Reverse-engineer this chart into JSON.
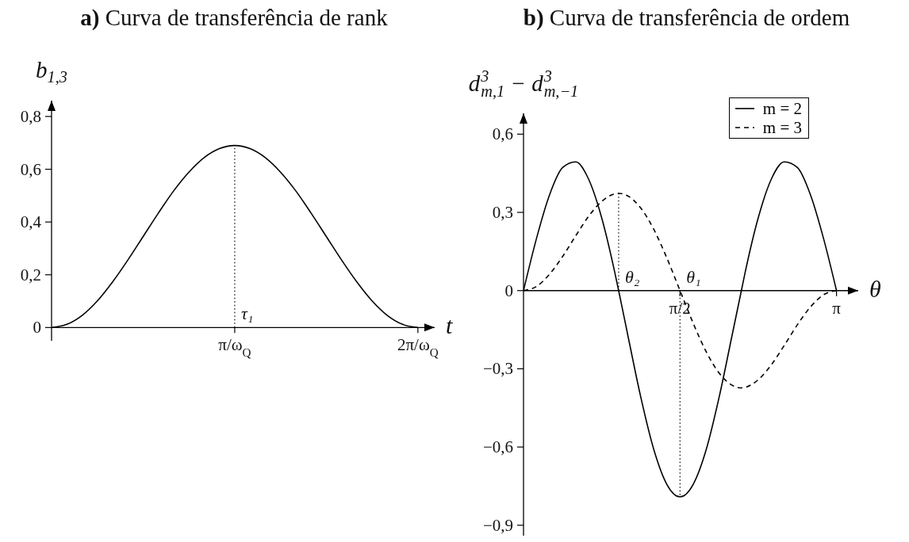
{
  "chart_data": [
    {
      "type": "line",
      "title": "a) Curva de transferência de rank",
      "xlabel": "t",
      "ylabel": "b$_{1,3}$",
      "color": "#000000",
      "categories": [
        null,
        null,
        null,
        null,
        null,
        null,
        null,
        null,
        null,
        null,
        null,
        null,
        "π/ω$_{Q}$",
        null,
        null,
        null,
        null,
        null,
        null,
        null,
        null,
        null,
        null,
        null,
        "2π/ω$_{Q}$"
      ],
      "values": [
        0,
        0.012,
        0.046,
        0.101,
        0.173,
        0.256,
        0.345,
        0.434,
        0.518,
        0.589,
        0.644,
        0.678,
        0.69,
        0.678,
        0.644,
        0.589,
        0.518,
        0.434,
        0.345,
        0.256,
        0.173,
        0.101,
        0.046,
        0.012,
        0
      ],
      "ylim": [
        -0.05,
        0.86
      ],
      "yticks": [
        {
          "value": 0,
          "label": "0"
        },
        {
          "value": 0.2,
          "label": "0,2"
        },
        {
          "value": 0.4,
          "label": "0,4"
        },
        {
          "value": 0.6,
          "label": "0,6"
        },
        {
          "value": 0.8,
          "label": "0,8"
        }
      ],
      "ref_lines": [
        {
          "axis": "x",
          "value": "π/ω$_{Q}$",
          "label": "τ₁",
          "line_style": "dotted"
        }
      ]
    },
    {
      "type": "line",
      "title": "b) Curva de transferência de ordem",
      "xlabel": "θ",
      "ylabel": "d$^{3}$$_{m,1}$ − d$^{3}$$_{m,−1}$",
      "series": [
        {
          "name": "m = 2",
          "color": "#000000",
          "line_style": "solid",
          "x": [
            0,
            0.131,
            0.262,
            0.393,
            0.524,
            0.654,
            0.785,
            0.916,
            0.955,
            1.047,
            1.178,
            1.309,
            1.44,
            1.571,
            1.702,
            1.833,
            1.963,
            2.094,
            2.187,
            2.225,
            2.356,
            2.487,
            2.618,
            2.749,
            2.88,
            3.011,
            3.142
          ],
          "values": [
            0,
            0.201,
            0.368,
            0.472,
            0.494,
            0.427,
            0.279,
            0.07,
            0,
            -0.171,
            -0.41,
            -0.611,
            -0.744,
            -0.791,
            -0.744,
            -0.611,
            -0.41,
            -0.171,
            0,
            0.07,
            0.279,
            0.427,
            0.494,
            0.472,
            0.368,
            0.201,
            0
          ]
        },
        {
          "name": "m = 3",
          "color": "#000000",
          "line_style": "dashed",
          "x": [
            0,
            0.131,
            0.262,
            0.393,
            0.524,
            0.654,
            0.785,
            0.916,
            0.955,
            1.047,
            1.178,
            1.309,
            1.44,
            1.571,
            1.702,
            1.833,
            1.963,
            2.094,
            2.187,
            2.225,
            2.356,
            2.487,
            2.618,
            2.749,
            2.88,
            3.011,
            3.142
          ],
          "values": [
            0,
            0.016,
            0.063,
            0.131,
            0.21,
            0.285,
            0.342,
            0.371,
            0.373,
            0.363,
            0.316,
            0.234,
            0.124,
            0,
            -0.124,
            -0.234,
            -0.316,
            -0.363,
            -0.373,
            -0.371,
            -0.342,
            -0.285,
            -0.21,
            -0.131,
            -0.063,
            -0.016,
            0
          ]
        }
      ],
      "xlim": [
        0,
        3.36
      ],
      "xticks": [
        {
          "value": 1.571,
          "label": "π/2"
        },
        {
          "value": 3.142,
          "label": "π"
        }
      ],
      "ylim": [
        -0.94,
        0.68
      ],
      "yticks": [
        {
          "value": 0.6,
          "label": "0,6"
        },
        {
          "value": 0.3,
          "label": "0,3"
        },
        0,
        {
          "value": -0.3,
          "label": "−0,3"
        },
        {
          "value": -0.6,
          "label": "−0,6"
        },
        {
          "value": -0.9,
          "label": "−0,9"
        }
      ],
      "legend": "top right",
      "ref_lines": [
        {
          "axis": "x",
          "value": 0.955,
          "label": "θ₂",
          "line_style": "dotted"
        },
        {
          "axis": "x",
          "value": 1.571,
          "label": "θ₁",
          "line_style": "dotted"
        }
      ]
    }
  ]
}
